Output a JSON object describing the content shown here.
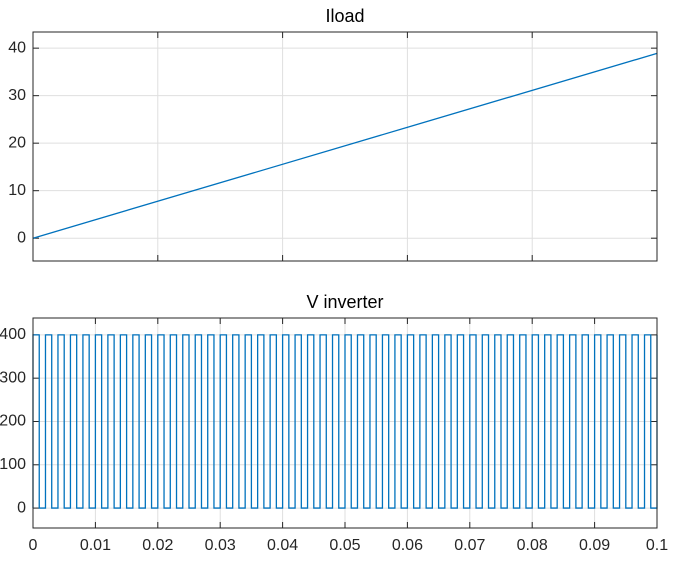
{
  "chart_data": [
    {
      "type": "line",
      "title": "Iload",
      "x": [
        0,
        0.1
      ],
      "values": [
        0,
        38.9
      ],
      "color": "#0072bd",
      "xlim": [
        0,
        0.1
      ],
      "xticks": [
        0,
        0.02,
        0.04,
        0.06,
        0.08,
        0.1
      ],
      "xtick_labels": false,
      "ylim": [
        -4.8,
        43.4
      ],
      "yticks": [
        0,
        10,
        20,
        30,
        40
      ],
      "grid": true
    },
    {
      "type": "line",
      "title": "V inverter",
      "x": [
        0,
        0,
        0.001,
        0.001,
        0.002,
        0.002,
        0.003,
        0.003,
        0.004,
        0.004,
        0.005,
        0.005,
        0.006,
        0.006,
        0.007,
        0.007,
        0.008,
        0.008,
        0.009,
        0.009,
        0.01,
        0.01,
        0.011,
        0.011,
        0.012,
        0.012,
        0.013,
        0.013,
        0.014,
        0.014,
        0.015,
        0.015,
        0.016,
        0.016,
        0.017,
        0.017,
        0.018,
        0.018,
        0.019,
        0.019,
        0.02,
        0.02,
        0.021,
        0.021,
        0.022,
        0.022,
        0.023,
        0.023,
        0.024,
        0.024,
        0.025,
        0.025,
        0.026,
        0.026,
        0.027,
        0.027,
        0.028,
        0.028,
        0.029,
        0.029,
        0.03,
        0.03,
        0.031,
        0.031,
        0.032,
        0.032,
        0.033,
        0.033,
        0.034,
        0.034,
        0.035,
        0.035,
        0.036,
        0.036,
        0.037,
        0.037,
        0.038,
        0.038,
        0.039,
        0.039,
        0.04,
        0.04,
        0.041,
        0.041,
        0.042,
        0.042,
        0.043,
        0.043,
        0.044,
        0.044,
        0.045,
        0.045,
        0.046,
        0.046,
        0.047,
        0.047,
        0.048,
        0.048,
        0.049,
        0.049,
        0.05,
        0.05,
        0.051,
        0.051,
        0.052,
        0.052,
        0.053,
        0.053,
        0.054,
        0.054,
        0.055,
        0.055,
        0.056,
        0.056,
        0.057,
        0.057,
        0.058,
        0.058,
        0.059,
        0.059,
        0.06,
        0.06,
        0.061,
        0.061,
        0.062,
        0.062,
        0.063,
        0.063,
        0.064,
        0.064,
        0.065,
        0.065,
        0.066,
        0.066,
        0.067,
        0.067,
        0.068,
        0.068,
        0.069,
        0.069,
        0.07,
        0.07,
        0.071,
        0.071,
        0.072,
        0.072,
        0.073,
        0.073,
        0.074,
        0.074,
        0.075,
        0.075,
        0.076,
        0.076,
        0.077,
        0.077,
        0.078,
        0.078,
        0.079,
        0.079,
        0.08,
        0.08,
        0.081,
        0.081,
        0.082,
        0.082,
        0.083,
        0.083,
        0.084,
        0.084,
        0.085,
        0.085,
        0.086,
        0.086,
        0.087,
        0.087,
        0.088,
        0.088,
        0.089,
        0.089,
        0.09,
        0.09,
        0.091,
        0.091,
        0.092,
        0.092,
        0.093,
        0.093,
        0.094,
        0.094,
        0.095,
        0.095,
        0.096,
        0.096,
        0.097,
        0.097,
        0.098,
        0.098,
        0.099,
        0.099,
        0.1,
        0.1
      ],
      "values": [
        0,
        400,
        400,
        0,
        0,
        400,
        400,
        0,
        0,
        400,
        400,
        0,
        0,
        400,
        400,
        0,
        0,
        400,
        400,
        0,
        0,
        400,
        400,
        0,
        0,
        400,
        400,
        0,
        0,
        400,
        400,
        0,
        0,
        400,
        400,
        0,
        0,
        400,
        400,
        0,
        0,
        400,
        400,
        0,
        0,
        400,
        400,
        0,
        0,
        400,
        400,
        0,
        0,
        400,
        400,
        0,
        0,
        400,
        400,
        0,
        0,
        400,
        400,
        0,
        0,
        400,
        400,
        0,
        0,
        400,
        400,
        0,
        0,
        400,
        400,
        0,
        0,
        400,
        400,
        0,
        0,
        400,
        400,
        0,
        0,
        400,
        400,
        0,
        0,
        400,
        400,
        0,
        0,
        400,
        400,
        0,
        0,
        400,
        400,
        0,
        0,
        400,
        400,
        0,
        0,
        400,
        400,
        0,
        0,
        400,
        400,
        0,
        0,
        400,
        400,
        0,
        0,
        400,
        400,
        0,
        0,
        400,
        400,
        0,
        0,
        400,
        400,
        0,
        0,
        400,
        400,
        0,
        0,
        400,
        400,
        0,
        0,
        400,
        400,
        0,
        0,
        400,
        400,
        0,
        0,
        400,
        400,
        0,
        0,
        400,
        400,
        0,
        0,
        400,
        400,
        0,
        0,
        400,
        400,
        0,
        0,
        400,
        400,
        0,
        0,
        400,
        400,
        0,
        0,
        400,
        400,
        0,
        0,
        400,
        400,
        0,
        0,
        400,
        400,
        0,
        0,
        400,
        400,
        0,
        0,
        400,
        400,
        0,
        0,
        400,
        400,
        0,
        0,
        400,
        400,
        0,
        0,
        400,
        400,
        0,
        0,
        400
      ],
      "color": "#0072bd",
      "xlim": [
        0,
        0.1
      ],
      "xticks": [
        0,
        0.01,
        0.02,
        0.03,
        0.04,
        0.05,
        0.06,
        0.07,
        0.08,
        0.09,
        0.1
      ],
      "ylim": [
        -46,
        439
      ],
      "yticks": [
        0,
        100,
        200,
        300,
        400
      ],
      "grid": true
    }
  ]
}
